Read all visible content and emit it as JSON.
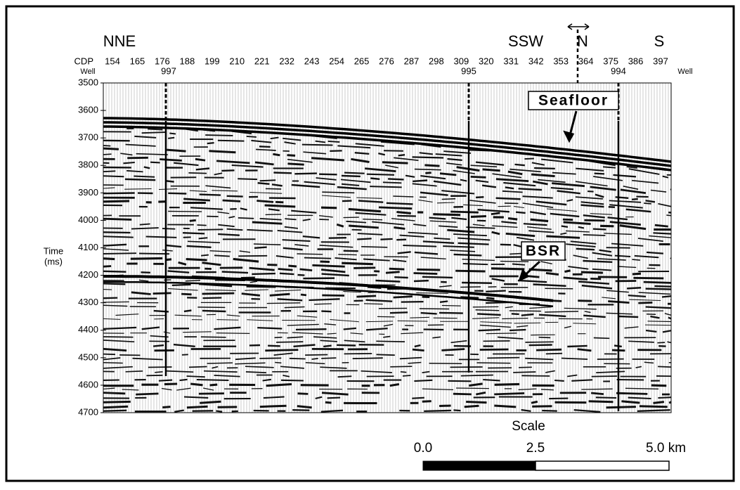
{
  "direction_labels": {
    "left": "NNE",
    "middle_left": "SSW",
    "middle_right": "N",
    "right": "S"
  },
  "cdp": {
    "label": "CDP",
    "values": [
      "154",
      "165",
      "176",
      "188",
      "199",
      "210",
      "221",
      "232",
      "243",
      "254",
      "265",
      "276",
      "287",
      "298",
      "309",
      "320",
      "331",
      "342",
      "353",
      "364",
      "375",
      "386",
      "397"
    ]
  },
  "wells": {
    "label": "Well",
    "names": [
      "997",
      "995",
      "994"
    ]
  },
  "time_axis": {
    "title_line1": "Time",
    "title_line2": "(ms)",
    "ticks": [
      3500,
      3600,
      3700,
      3800,
      3900,
      4000,
      4100,
      4200,
      4300,
      4400,
      4500,
      4600,
      4700
    ]
  },
  "annotations": {
    "seafloor": "Seafloor",
    "bsr": "BSR"
  },
  "scale": {
    "title": "Scale",
    "labels": [
      "0.0",
      "2.5",
      "5.0 km"
    ]
  }
}
